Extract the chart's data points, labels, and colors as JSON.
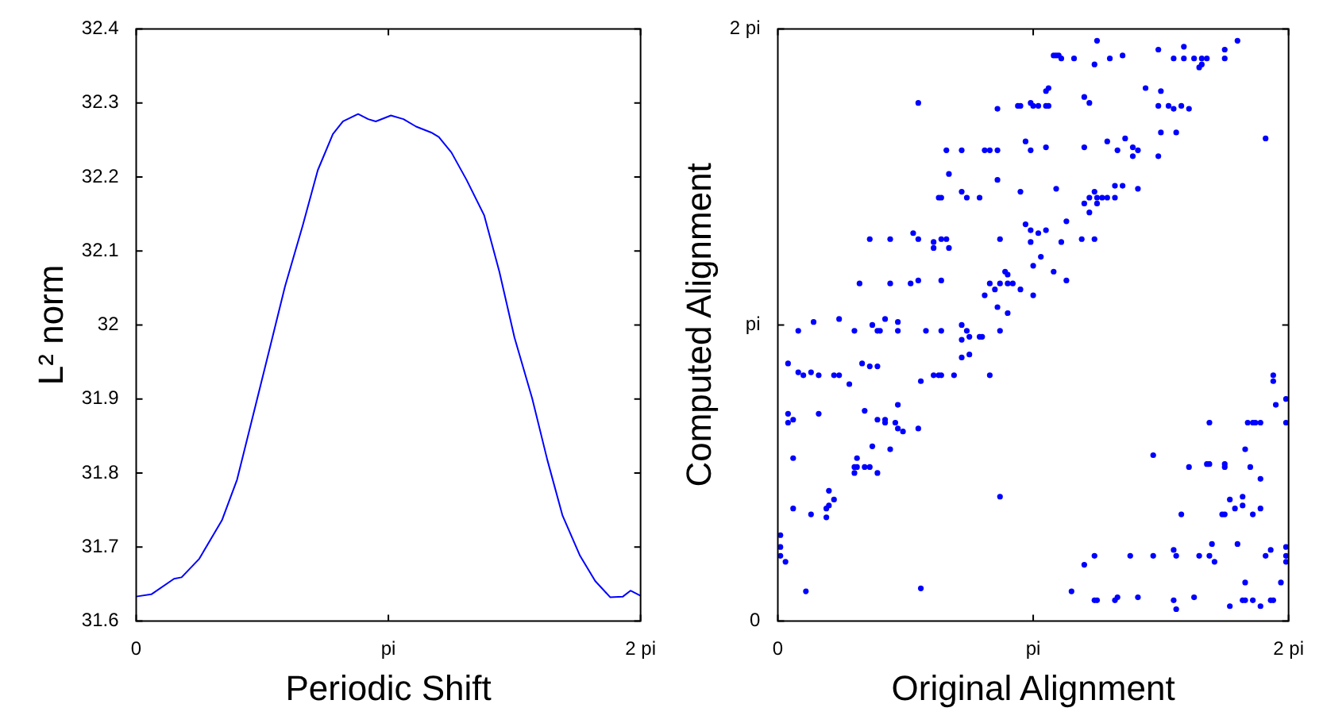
{
  "chart_data": [
    {
      "type": "line",
      "xlabel": "Periodic Shift",
      "ylabel": "L² norm",
      "xlim": [
        0,
        2
      ],
      "xticks": [
        {
          "value": 0,
          "label": "0"
        },
        {
          "value": 1,
          "label": "pi"
        },
        {
          "value": 2,
          "label": "2 pi"
        }
      ],
      "ylim": [
        31.6,
        32.4
      ],
      "yticks": [
        31.6,
        31.7,
        31.8,
        31.9,
        32,
        32.1,
        32.2,
        32.3,
        32.4
      ],
      "grid": false,
      "legend": false,
      "marker": "none",
      "line_style": "solid",
      "series": [
        {
          "color": "#0000ff",
          "x": [
            0,
            0.06,
            0.15,
            0.18,
            0.25,
            0.34,
            0.4,
            0.46,
            0.53,
            0.59,
            0.66,
            0.72,
            0.78,
            0.82,
            0.88,
            0.92,
            0.95,
            1.01,
            1.06,
            1.11,
            1.17,
            1.2,
            1.25,
            1.31,
            1.38,
            1.44,
            1.5,
            1.57,
            1.63,
            1.69,
            1.76,
            1.82,
            1.88,
            1.93,
            1.96,
            2.0
          ],
          "values": [
            31.633,
            31.636,
            31.657,
            31.659,
            31.684,
            31.736,
            31.791,
            31.873,
            31.969,
            32.052,
            32.134,
            32.209,
            32.258,
            32.275,
            32.285,
            32.278,
            32.275,
            32.283,
            32.278,
            32.268,
            32.26,
            32.254,
            32.233,
            32.196,
            32.148,
            32.072,
            31.983,
            31.901,
            31.818,
            31.743,
            31.688,
            31.654,
            31.632,
            31.633,
            31.641,
            31.634
          ]
        }
      ]
    },
    {
      "type": "scatter",
      "xlabel": "Original Alignment",
      "ylabel": "Computed Alignment",
      "xlim": [
        0,
        2
      ],
      "xticks": [
        {
          "value": 0,
          "label": "0"
        },
        {
          "value": 1,
          "label": "pi"
        },
        {
          "value": 2,
          "label": "2 pi"
        }
      ],
      "ylim": [
        0,
        2
      ],
      "yticks": [
        {
          "value": 0,
          "label": "0"
        },
        {
          "value": 1,
          "label": "pi"
        },
        {
          "value": 2,
          "label": "2 pi"
        }
      ],
      "grid": false,
      "legend": false,
      "marker": "circle",
      "series": [
        {
          "color": "#0000ff",
          "x": [
            0.55,
            0.86,
            0.94,
            0.95,
            0.99,
            1.0,
            1.02,
            0.97,
            0.99,
            0.66,
            0.72,
            0.81,
            0.83,
            0.86,
            0.67,
            0.86,
            0.63,
            0.64,
            0.72,
            0.74,
            0.79,
            0.95,
            0.36,
            0.44,
            0.53,
            0.55,
            0.64,
            0.66,
            0.67,
            0.61,
            0.61,
            0.87,
            0.97,
            0.99,
            1.02,
            0.99,
            1.03,
            1.0,
            0.89,
            0.9,
            0.32,
            0.44,
            0.52,
            0.55,
            0.64,
            0.83,
            0.87,
            0.9,
            0.92,
            0.85,
            0.81,
            0.95,
            1.0,
            0.86,
            0.9,
            0.14,
            0.24,
            0.42,
            0.37,
            0.47,
            0.72,
            0.08,
            0.3,
            0.39,
            0.4,
            0.47,
            0.58,
            0.64,
            0.74,
            0.87,
            0.72,
            0.75,
            0.79,
            0.8,
            0.72,
            0.75,
            0.04,
            0.33,
            0.36,
            0.39,
            0.08,
            0.13,
            0.1,
            0.16,
            0.22,
            0.24,
            0.28,
            0.56,
            0.61,
            0.63,
            0.64,
            0.69,
            0.83,
            0.04,
            0.16,
            0.06,
            0.04,
            0.34,
            0.47,
            0.39,
            0.42,
            0.42,
            0.46,
            0.47,
            0.49,
            0.55,
            0.37,
            0.44,
            0.06,
            0.31,
            0.3,
            0.31,
            0.3,
            0.34,
            0.36,
            0.39,
            0.2,
            0.22,
            0.2,
            0.19,
            0.19,
            0.06,
            0.13,
            0.87,
            0.01,
            0.01,
            0.01,
            0.03,
            0.11,
            0.56,
            1.25,
            1.8,
            1.59,
            1.49,
            1.75,
            1.08,
            1.09,
            1.1,
            1.11,
            1.16,
            1.24,
            1.3,
            1.35,
            1.55,
            1.59,
            1.63,
            1.66,
            1.68,
            1.66,
            1.65,
            1.75,
            1.06,
            1.05,
            1.05,
            1.06,
            1.2,
            1.22,
            1.44,
            1.5,
            1.49,
            1.53,
            1.55,
            1.58,
            1.61,
            1.05,
            1.2,
            1.29,
            1.36,
            1.33,
            1.39,
            1.41,
            1.39,
            1.49,
            1.5,
            1.56,
            1.91,
            1.09,
            1.32,
            1.35,
            1.41,
            1.24,
            1.22,
            1.25,
            1.27,
            1.29,
            1.32,
            1.2,
            1.25,
            1.22,
            1.13,
            1.05,
            1.11,
            1.19,
            1.24,
            1.08,
            1.13,
            1.94,
            1.94,
            1.99,
            1.95,
            1.69,
            1.84,
            1.86,
            1.87,
            1.89,
            1.99,
            1.47,
            1.83,
            1.68,
            1.69,
            1.75,
            1.75,
            1.61,
            1.85,
            1.89,
            1.82,
            1.77,
            1.82,
            1.79,
            1.89,
            1.58,
            1.74,
            1.75,
            1.86,
            1.7,
            1.8,
            1.99,
            1.93,
            1.91,
            1.99,
            1.99,
            1.24,
            1.2,
            1.38,
            1.47,
            1.55,
            1.56,
            1.65,
            1.69,
            1.71,
            1.83,
            1.97,
            1.15,
            1.24,
            1.25,
            1.32,
            1.33,
            1.41,
            1.55,
            1.56,
            1.63,
            1.77,
            1.82,
            1.83,
            1.86,
            1.89,
            1.93,
            1.94
          ],
          "values": [
            1.75,
            1.73,
            1.74,
            1.74,
            1.75,
            1.74,
            1.74,
            1.62,
            1.59,
            1.59,
            1.59,
            1.59,
            1.59,
            1.59,
            1.51,
            1.49,
            1.43,
            1.43,
            1.45,
            1.43,
            1.43,
            1.45,
            1.29,
            1.29,
            1.31,
            1.29,
            1.29,
            1.29,
            1.26,
            1.28,
            1.26,
            1.29,
            1.34,
            1.32,
            1.31,
            1.28,
            1.23,
            1.2,
            1.18,
            1.17,
            1.14,
            1.14,
            1.14,
            1.15,
            1.15,
            1.14,
            1.14,
            1.14,
            1.14,
            1.12,
            1.1,
            1.12,
            1.1,
            1.06,
            1.04,
            1.01,
            1.02,
            1.02,
            1.0,
            1.01,
            1.0,
            0.98,
            0.98,
            0.98,
            0.98,
            0.98,
            0.98,
            0.98,
            0.98,
            0.98,
            0.95,
            0.96,
            0.96,
            0.96,
            0.89,
            0.9,
            0.87,
            0.87,
            0.86,
            0.86,
            0.84,
            0.84,
            0.83,
            0.83,
            0.83,
            0.83,
            0.8,
            0.81,
            0.83,
            0.83,
            0.83,
            0.83,
            0.83,
            0.7,
            0.7,
            0.68,
            0.67,
            0.71,
            0.73,
            0.68,
            0.68,
            0.67,
            0.67,
            0.65,
            0.64,
            0.65,
            0.59,
            0.58,
            0.55,
            0.55,
            0.52,
            0.52,
            0.5,
            0.52,
            0.52,
            0.5,
            0.44,
            0.41,
            0.39,
            0.38,
            0.35,
            0.38,
            0.36,
            0.42,
            0.29,
            0.25,
            0.22,
            0.2,
            0.1,
            0.11,
            1.96,
            1.96,
            1.94,
            1.93,
            1.93,
            1.91,
            1.91,
            1.91,
            1.9,
            1.9,
            1.88,
            1.9,
            1.91,
            1.9,
            1.9,
            1.9,
            1.9,
            1.9,
            1.88,
            1.87,
            1.9,
            1.8,
            1.79,
            1.74,
            1.74,
            1.77,
            1.75,
            1.8,
            1.79,
            1.74,
            1.74,
            1.73,
            1.74,
            1.73,
            1.6,
            1.6,
            1.62,
            1.63,
            1.59,
            1.6,
            1.59,
            1.57,
            1.57,
            1.65,
            1.65,
            1.63,
            1.46,
            1.47,
            1.47,
            1.46,
            1.45,
            1.43,
            1.43,
            1.43,
            1.43,
            1.43,
            1.41,
            1.41,
            1.38,
            1.35,
            1.32,
            1.28,
            1.29,
            1.29,
            1.18,
            1.15,
            0.83,
            0.81,
            0.75,
            0.73,
            0.67,
            0.67,
            0.67,
            0.67,
            0.67,
            0.67,
            0.56,
            0.58,
            0.53,
            0.53,
            0.53,
            0.52,
            0.52,
            0.52,
            0.48,
            0.42,
            0.41,
            0.39,
            0.38,
            0.38,
            0.36,
            0.36,
            0.36,
            0.36,
            0.26,
            0.26,
            0.25,
            0.24,
            0.22,
            0.22,
            0.2,
            0.22,
            0.19,
            0.22,
            0.22,
            0.24,
            0.22,
            0.22,
            0.22,
            0.2,
            0.13,
            0.13,
            0.1,
            0.07,
            0.07,
            0.07,
            0.08,
            0.08,
            0.07,
            0.04,
            0.08,
            0.05,
            0.07,
            0.07,
            0.07,
            0.05,
            0.07,
            0.07
          ]
        }
      ]
    }
  ]
}
